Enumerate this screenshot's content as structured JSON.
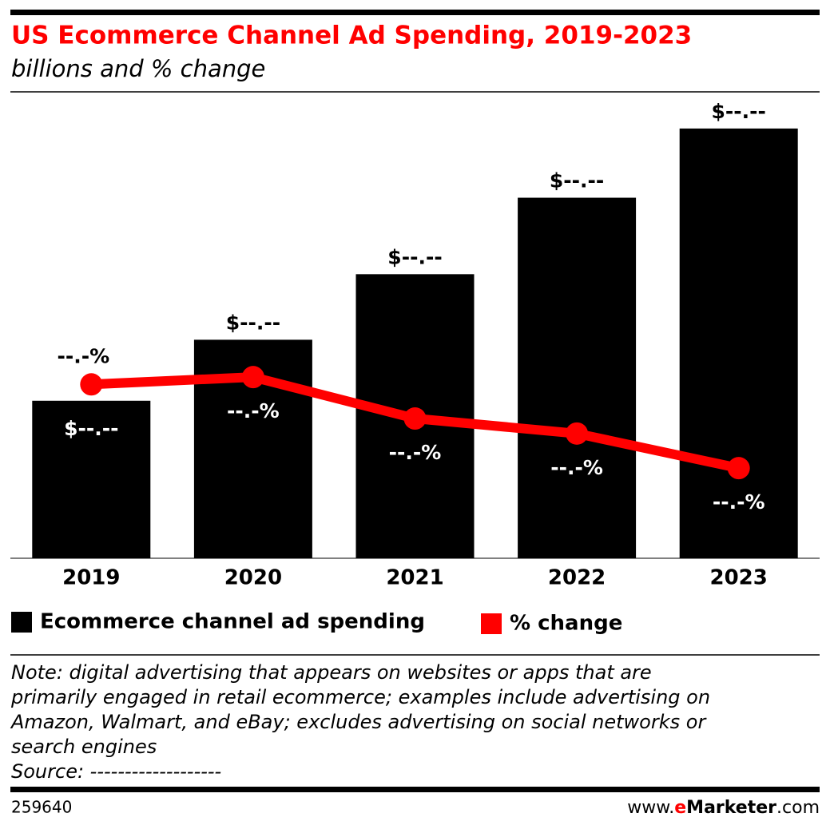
{
  "chart_data": {
    "type": "bar_line",
    "title": "US Ecommerce Channel Ad Spending, 2019-2023",
    "subtitle": "billions and % change",
    "categories": [
      "2019",
      "2020",
      "2021",
      "2022",
      "2023"
    ],
    "series": [
      {
        "name": "Ecommerce channel ad spending",
        "color": "#000000",
        "type": "bar",
        "values": [
          17.3,
          24.0,
          31.2,
          39.6,
          47.2
        ],
        "value_labels": [
          "$--.--",
          "$--.--",
          "$--.--",
          "$--.--",
          "$--.--"
        ]
      },
      {
        "name": "% change",
        "color": "#ff0000",
        "type": "line",
        "axis": "y2",
        "values": [
          38.2,
          39.8,
          30.7,
          27.4,
          19.8
        ],
        "value_labels": [
          "--.-%",
          "--.-%",
          "--.-%",
          "--.-%",
          "--.-%"
        ]
      }
    ],
    "ylim": [
      0,
      50
    ],
    "y2lim": [
      0,
      100
    ],
    "note_lines": [
      "Note: digital advertising that appears on websites or apps that are",
      "primarily engaged in retail ecommerce; examples include advertising on",
      "Amazon, Walmart, and eBay; excludes advertising on social networks or",
      "search engines"
    ],
    "source": "Source: -------------------",
    "footer": {
      "id": "259640",
      "site_prefix": "www.",
      "site_brand_e": "e",
      "site_brand_rest": "Marketer",
      "site_suffix": ".com"
    }
  }
}
